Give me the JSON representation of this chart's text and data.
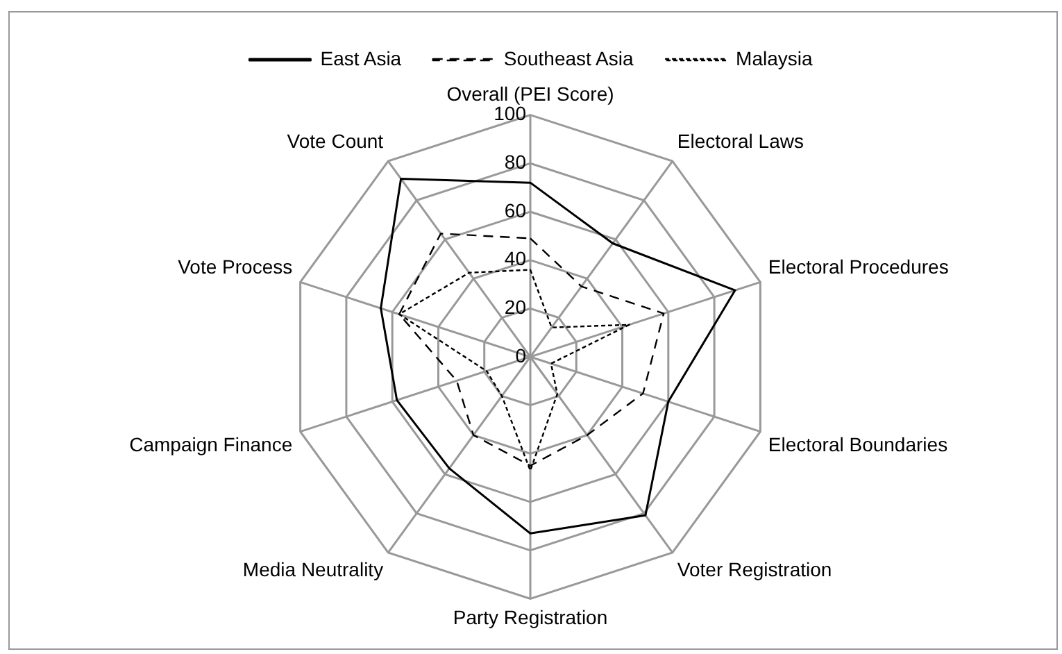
{
  "chart_data": {
    "type": "radar",
    "categories": [
      "Overall (PEI Score)",
      "Electoral Laws",
      "Electoral Procedures",
      "Electoral Boundaries",
      "Voter Registration",
      "Party Registration",
      "Media Neutrality",
      "Campaign Finance",
      "Vote Process",
      "Vote Count"
    ],
    "series": [
      {
        "name": "East Asia",
        "color": "#000000",
        "line_style": "solid",
        "values": [
          72,
          58,
          89,
          60,
          81,
          73,
          57,
          58,
          65,
          91
        ]
      },
      {
        "name": "Southeast Asia",
        "color": "#000000",
        "line_style": "dashed",
        "values": [
          49,
          36,
          58,
          49,
          40,
          45,
          40,
          32,
          57,
          63
        ]
      },
      {
        "name": "Malaysia",
        "color": "#000000",
        "line_style": "dotted",
        "values": [
          36,
          15,
          43,
          9,
          19,
          47,
          20,
          19,
          57,
          43
        ]
      }
    ],
    "ylim": [
      0,
      100
    ],
    "yticks": [
      0,
      20,
      40,
      60,
      80,
      100
    ],
    "grid": true,
    "legend": "top",
    "marker": "none"
  }
}
